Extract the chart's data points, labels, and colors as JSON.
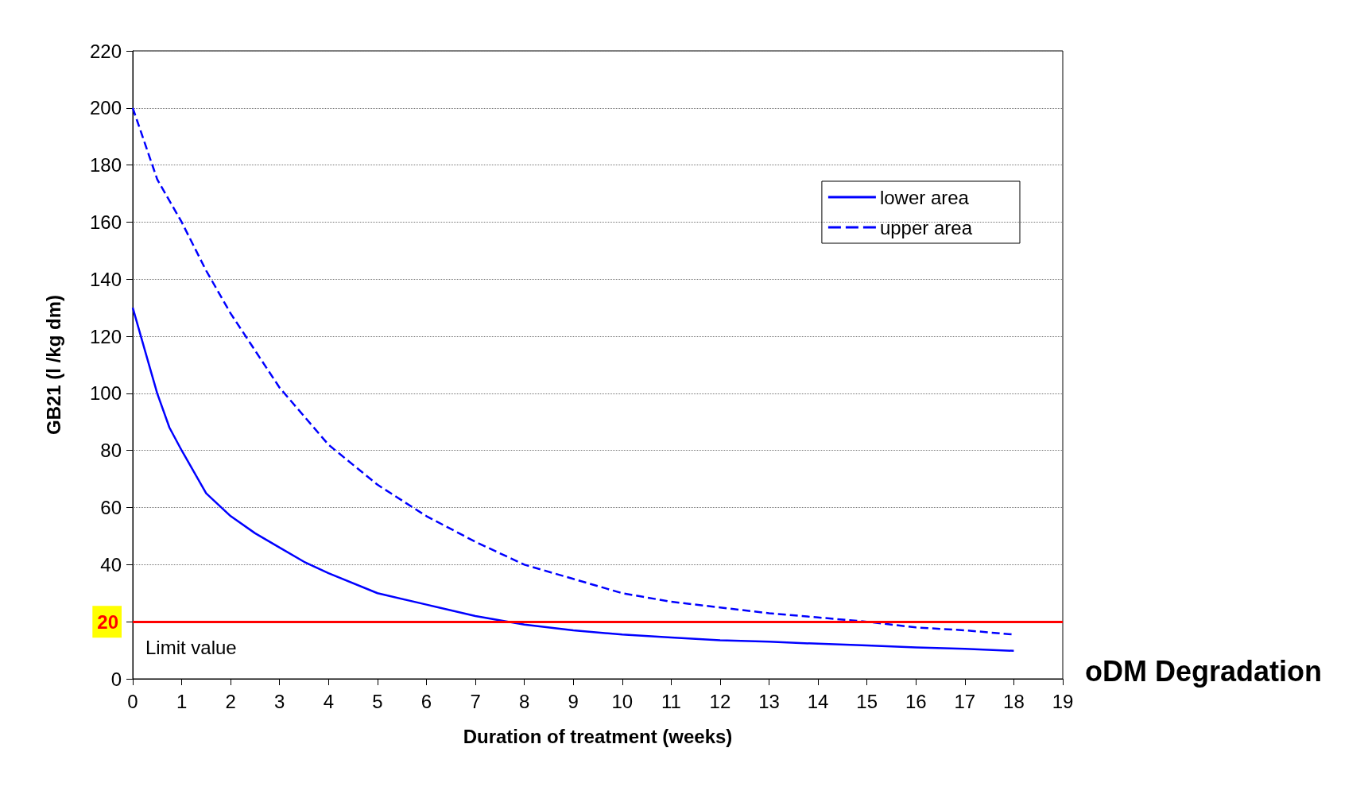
{
  "chart_data": {
    "type": "line",
    "xlabel": "Duration of treatment (weeks)",
    "ylabel": "GB21 (l /kg dm)",
    "xlim": [
      0,
      19
    ],
    "xticks": [
      0,
      1,
      2,
      3,
      4,
      5,
      6,
      7,
      8,
      9,
      10,
      11,
      12,
      13,
      14,
      15,
      16,
      17,
      18,
      19
    ],
    "ylim": [
      0,
      220
    ],
    "yticks": [
      0,
      20,
      40,
      60,
      80,
      100,
      120,
      140,
      160,
      180,
      200,
      220
    ],
    "grid": "y",
    "legend": "top right",
    "marker": "none",
    "series": [
      {
        "name": "lower area",
        "color": "#0000ff",
        "line_style": "solid",
        "x": [
          0,
          0.25,
          0.5,
          0.75,
          1,
          1.5,
          2,
          2.5,
          3,
          3.5,
          4,
          5,
          6,
          7,
          8,
          9,
          10,
          11,
          12,
          13,
          14,
          15,
          16,
          17,
          18
        ],
        "values": [
          130,
          115,
          100,
          88,
          80,
          65,
          57,
          51,
          46,
          41,
          37,
          30,
          26,
          22,
          19,
          17,
          15.5,
          14.5,
          13.5,
          13,
          12.3,
          11.7,
          11,
          10.5,
          9.8
        ]
      },
      {
        "name": "upper area",
        "color": "#0000ff",
        "line_style": "dashed",
        "x": [
          0,
          0.5,
          1,
          1.5,
          2,
          2.5,
          3,
          3.5,
          4,
          5,
          6,
          7,
          8,
          9,
          10,
          11,
          12,
          13,
          14,
          15,
          16,
          17,
          18
        ],
        "values": [
          200,
          175,
          160,
          143,
          128,
          115,
          102,
          92,
          82,
          68,
          57,
          48,
          40,
          35,
          30,
          27,
          25,
          23,
          21.5,
          20,
          18,
          17,
          15.5
        ]
      }
    ],
    "ref_lines": [
      {
        "axis": "y",
        "value": 20,
        "label": "Limit value",
        "color": "#ff0000"
      }
    ],
    "annotations": [
      "oDM Degradation"
    ]
  }
}
